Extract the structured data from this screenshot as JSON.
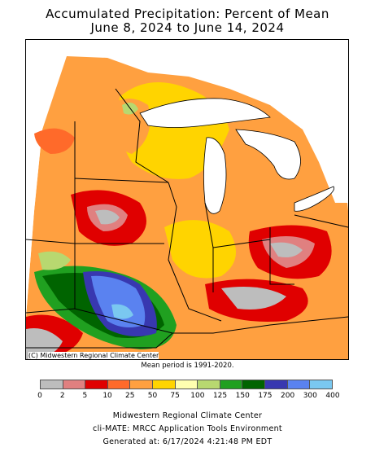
{
  "title": {
    "line1": "Accumulated Precipitation: Percent of Mean",
    "line2": "June 8, 2024 to June 14, 2024"
  },
  "map": {
    "copyright": "(C) Midwestern Regional Climate Center",
    "mean_period": "Mean period is 1991-2020."
  },
  "legend": {
    "colors": [
      "#bdbdbd",
      "#e08080",
      "#e00000",
      "#ff6a2a",
      "#ffa040",
      "#ffd400",
      "#ffffb0",
      "#b8d870",
      "#20a020",
      "#006400",
      "#3838b0",
      "#5a82f0",
      "#7ac8f0"
    ],
    "ticks": [
      "0",
      "2",
      "5",
      "10",
      "25",
      "50",
      "75",
      "100",
      "125",
      "150",
      "175",
      "200",
      "300",
      "400"
    ]
  },
  "footer": {
    "line1": "Midwestern Regional Climate Center",
    "line2": "cli-MATE: MRCC Application Tools Environment",
    "line3": "Generated at: 6/17/2024 4:21:48 PM EDT"
  }
}
